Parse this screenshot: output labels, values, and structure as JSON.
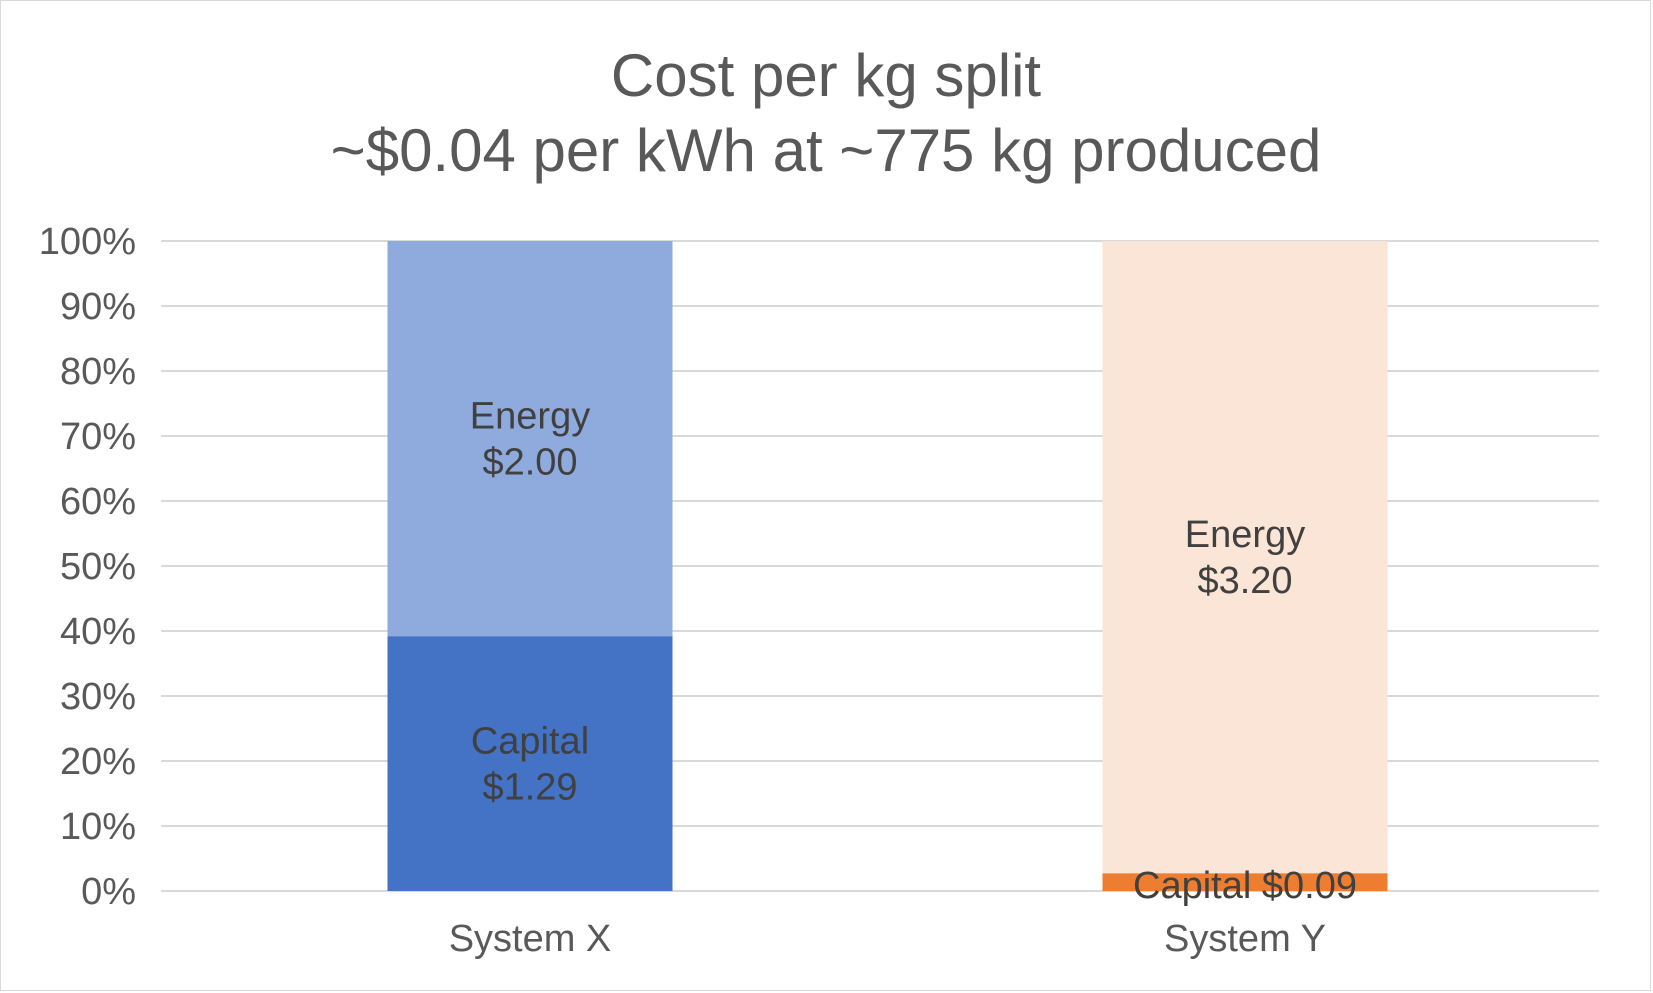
{
  "chart_data": {
    "type": "bar",
    "stacked": true,
    "percent": true,
    "title_lines": [
      "Cost per kg split",
      "~$0.04 per kWh at ~775 kg produced"
    ],
    "xlabel": "",
    "ylabel": "",
    "ylim": [
      0,
      100
    ],
    "y_ticks": [
      "0%",
      "10%",
      "20%",
      "30%",
      "40%",
      "50%",
      "60%",
      "70%",
      "80%",
      "90%",
      "100%"
    ],
    "grid": true,
    "legend": "none",
    "categories": [
      "System X",
      "System Y"
    ],
    "bars": [
      {
        "category": "System X",
        "segments": [
          {
            "name": "Capital",
            "value": 1.29,
            "label_lines": [
              "Capital",
              "$1.29"
            ],
            "color": "#4472C4"
          },
          {
            "name": "Energy",
            "value": 2.0,
            "label_lines": [
              "Energy",
              "$2.00"
            ],
            "color": "#8FAADC"
          }
        ]
      },
      {
        "category": "System Y",
        "segments": [
          {
            "name": "Capital",
            "value": 0.09,
            "label_lines": [
              "Capital  $0.09"
            ],
            "color": "#ED7D31"
          },
          {
            "name": "Energy",
            "value": 3.2,
            "label_lines": [
              "Energy",
              "$3.20"
            ],
            "color": "#FBE5D6"
          }
        ]
      }
    ],
    "colors": {
      "gridline": "#d9d9d9",
      "text": "#595959",
      "label": "#404040"
    }
  }
}
